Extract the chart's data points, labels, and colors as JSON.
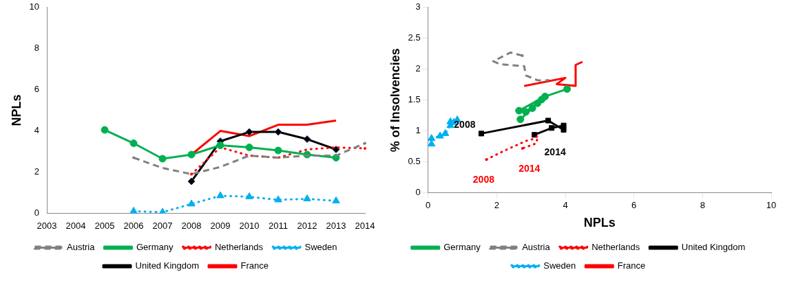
{
  "chart_data": [
    {
      "type": "line",
      "ylabel": "NPLs",
      "categories": [
        "2003",
        "2004",
        "2005",
        "2006",
        "2007",
        "2008",
        "2009",
        "2010",
        "2011",
        "2012",
        "2013",
        "2014"
      ],
      "ylim": [
        0,
        10
      ],
      "yticks": [
        0,
        2,
        4,
        6,
        8,
        10
      ],
      "grid": false,
      "legend": "bottom",
      "series": [
        {
          "name": "Austria",
          "color": "#808080",
          "line_style": "dashed",
          "marker": "none",
          "values": [
            null,
            null,
            null,
            2.7,
            2.2,
            1.9,
            2.25,
            2.8,
            2.7,
            2.8,
            2.8,
            3.4
          ]
        },
        {
          "name": "Germany",
          "color": "#00b050",
          "line_style": "solid",
          "marker": "circle",
          "values": [
            null,
            null,
            4.05,
            3.4,
            2.65,
            2.85,
            3.3,
            3.2,
            3.05,
            2.85,
            2.7,
            null
          ]
        },
        {
          "name": "Netherlands",
          "color": "#ff0000",
          "line_style": "dotted",
          "marker": "none",
          "values": [
            null,
            null,
            null,
            null,
            null,
            1.9,
            3.2,
            2.8,
            2.7,
            3.1,
            3.2,
            3.15
          ]
        },
        {
          "name": "Sweden",
          "color": "#00b0f0",
          "line_style": "dotted",
          "marker": "triangle",
          "values": [
            null,
            null,
            null,
            0.1,
            0.05,
            0.45,
            0.85,
            0.8,
            0.65,
            0.7,
            0.6,
            null
          ]
        },
        {
          "name": "United Kingdom",
          "color": "#000000",
          "line_style": "solid",
          "marker": "diamond",
          "values": [
            null,
            null,
            null,
            null,
            null,
            1.55,
            3.5,
            3.95,
            3.95,
            3.6,
            3.1,
            null
          ]
        },
        {
          "name": "France",
          "color": "#ff0000",
          "line_style": "solid",
          "marker": "none",
          "values": [
            null,
            null,
            null,
            null,
            null,
            2.85,
            4.0,
            3.75,
            4.3,
            4.3,
            4.5,
            null
          ]
        }
      ]
    },
    {
      "type": "line",
      "xlabel": "NPLs",
      "ylabel": "% of Insolvencies",
      "xlim": [
        0,
        10
      ],
      "xticks": [
        0,
        2,
        4,
        6,
        8,
        10
      ],
      "ylim": [
        0,
        3
      ],
      "yticks": [
        0,
        0.5,
        1,
        1.5,
        2,
        2.5,
        3
      ],
      "grid": false,
      "legend": "bottom",
      "annotations": [
        {
          "text": "2008",
          "x": 1.55,
          "y": 0.96
        },
        {
          "text": "2014",
          "x": 3.1,
          "y": 0.94
        },
        {
          "text": "2008",
          "x": 1.7,
          "y": 0.54
        },
        {
          "text": "2014",
          "x": 2.75,
          "y": 0.72
        }
      ],
      "series": [
        {
          "name": "Germany",
          "color": "#00b050",
          "line_style": "solid",
          "marker": "circle",
          "x": [
            4.05,
            3.41,
            2.65,
            2.85,
            3.31,
            3.19,
            3.04,
            2.69
          ],
          "values": [
            1.68,
            1.56,
            1.33,
            1.31,
            1.51,
            1.45,
            1.37,
            1.19
          ]
        },
        {
          "name": "Austria",
          "color": "#808080",
          "line_style": "dashed",
          "marker": "none",
          "x": [
            2.75,
            2.4,
            1.9,
            2.1,
            2.8,
            2.85,
            3.2,
            3.5
          ],
          "values": [
            2.22,
            2.27,
            2.13,
            2.08,
            2.05,
            1.9,
            1.82,
            1.82
          ]
        },
        {
          "name": "Netherlands",
          "color": "#ff0000",
          "line_style": "dotted",
          "marker": "none",
          "x": [
            1.7,
            2.25,
            2.65,
            2.85,
            3.05,
            3.2,
            3.15,
            2.75
          ],
          "values": [
            0.54,
            0.69,
            0.79,
            0.84,
            0.87,
            0.92,
            0.8,
            0.72
          ]
        },
        {
          "name": "United Kingdom",
          "color": "#000000",
          "line_style": "solid",
          "marker": "square",
          "x": [
            1.55,
            3.5,
            3.95,
            3.95,
            3.6,
            3.1
          ],
          "values": [
            0.96,
            1.17,
            1.02,
            1.09,
            1.05,
            0.94
          ]
        },
        {
          "name": "Sweden",
          "color": "#00b0f0",
          "line_style": "dotted",
          "marker": "triangle",
          "x": [
            0.1,
            0.1,
            0.35,
            0.5,
            0.65,
            0.65,
            0.85,
            0.75
          ],
          "values": [
            0.79,
            0.88,
            0.92,
            0.96,
            1.09,
            1.15,
            1.18,
            1.14
          ]
        },
        {
          "name": "France",
          "color": "#ff0000",
          "line_style": "solid",
          "marker": "none",
          "x": [
            2.8,
            4.0,
            3.75,
            4.3,
            4.3,
            4.5
          ],
          "values": [
            1.73,
            1.86,
            1.76,
            1.73,
            2.07,
            2.12
          ]
        }
      ]
    }
  ]
}
